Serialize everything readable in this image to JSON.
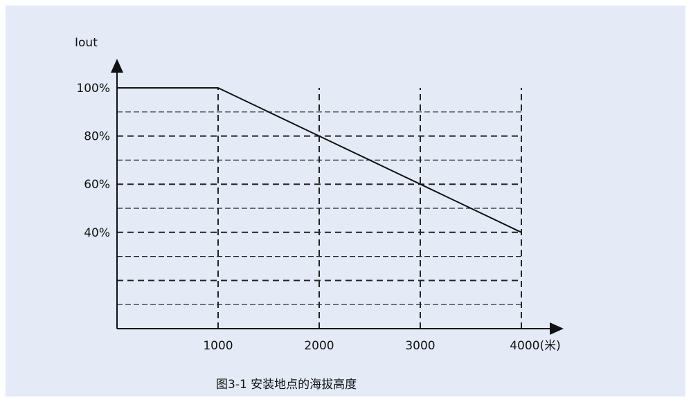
{
  "chart_data": {
    "type": "line",
    "title": "",
    "ylabel": "Iout",
    "xlabel": "",
    "x_unit_suffix": "(米)",
    "x_ticks": [
      1000,
      2000,
      3000,
      4000
    ],
    "y_tick_labels": [
      {
        "value": 100,
        "label": "100%"
      },
      {
        "value": 80,
        "label": "80%"
      },
      {
        "value": 60,
        "label": "60%"
      },
      {
        "value": 40,
        "label": "40%"
      }
    ],
    "xlim": [
      0,
      4000
    ],
    "ylim": [
      0,
      100
    ],
    "gridlines_y": [
      10,
      20,
      30,
      40,
      50,
      60,
      70,
      80,
      90
    ],
    "series": [
      {
        "x": [
          0,
          1000,
          2000,
          3000,
          4000
        ],
        "y": [
          100,
          100,
          80,
          60,
          40
        ]
      }
    ],
    "grid": "dashed"
  },
  "caption": "图3-1 安装地点的海拔高度",
  "colors": {
    "background": "#e4ebf6",
    "line": "#111111",
    "grid": "#333333"
  }
}
